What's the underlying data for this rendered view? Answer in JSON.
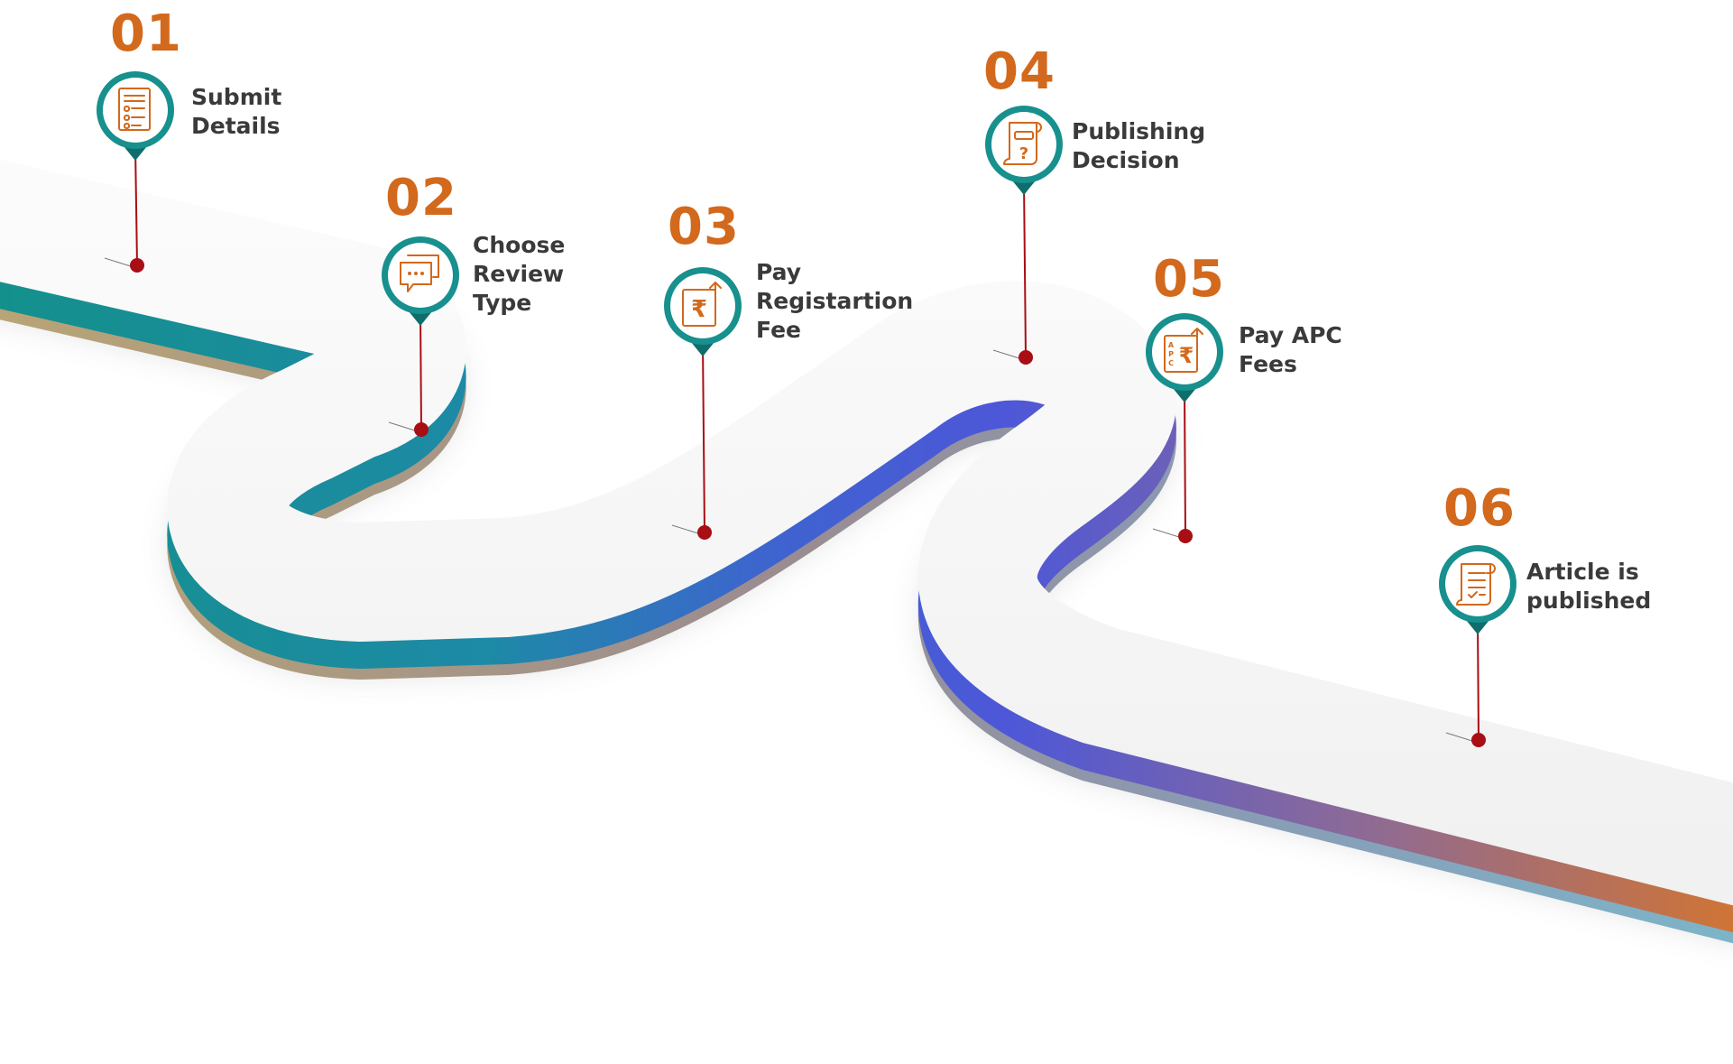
{
  "colors": {
    "accent_orange": "#d2691c",
    "pin_teal": "#17908e",
    "road_teal": "#16908e",
    "road_blue": "#4f5bd8",
    "road_purple": "#7d6aa8",
    "road_orange": "#c96f3a",
    "marker_red": "#a80e14",
    "label_text": "#3a3a3a"
  },
  "steps": [
    {
      "number": "01",
      "lines": [
        "Submit",
        "Details"
      ],
      "icon": "form-checklist-icon"
    },
    {
      "number": "02",
      "lines": [
        "Choose",
        "Review",
        "Type"
      ],
      "icon": "chat-bubbles-icon"
    },
    {
      "number": "03",
      "lines": [
        "Pay",
        "Registartion",
        "Fee"
      ],
      "icon": "rupee-payment-icon"
    },
    {
      "number": "04",
      "lines": [
        "Publishing",
        "Decision"
      ],
      "icon": "decision-scroll-icon"
    },
    {
      "number": "05",
      "lines": [
        "Pay APC",
        "Fees"
      ],
      "icon": "apc-rupee-payment-icon"
    },
    {
      "number": "06",
      "lines": [
        "Article is",
        "published"
      ],
      "icon": "published-article-icon"
    }
  ]
}
